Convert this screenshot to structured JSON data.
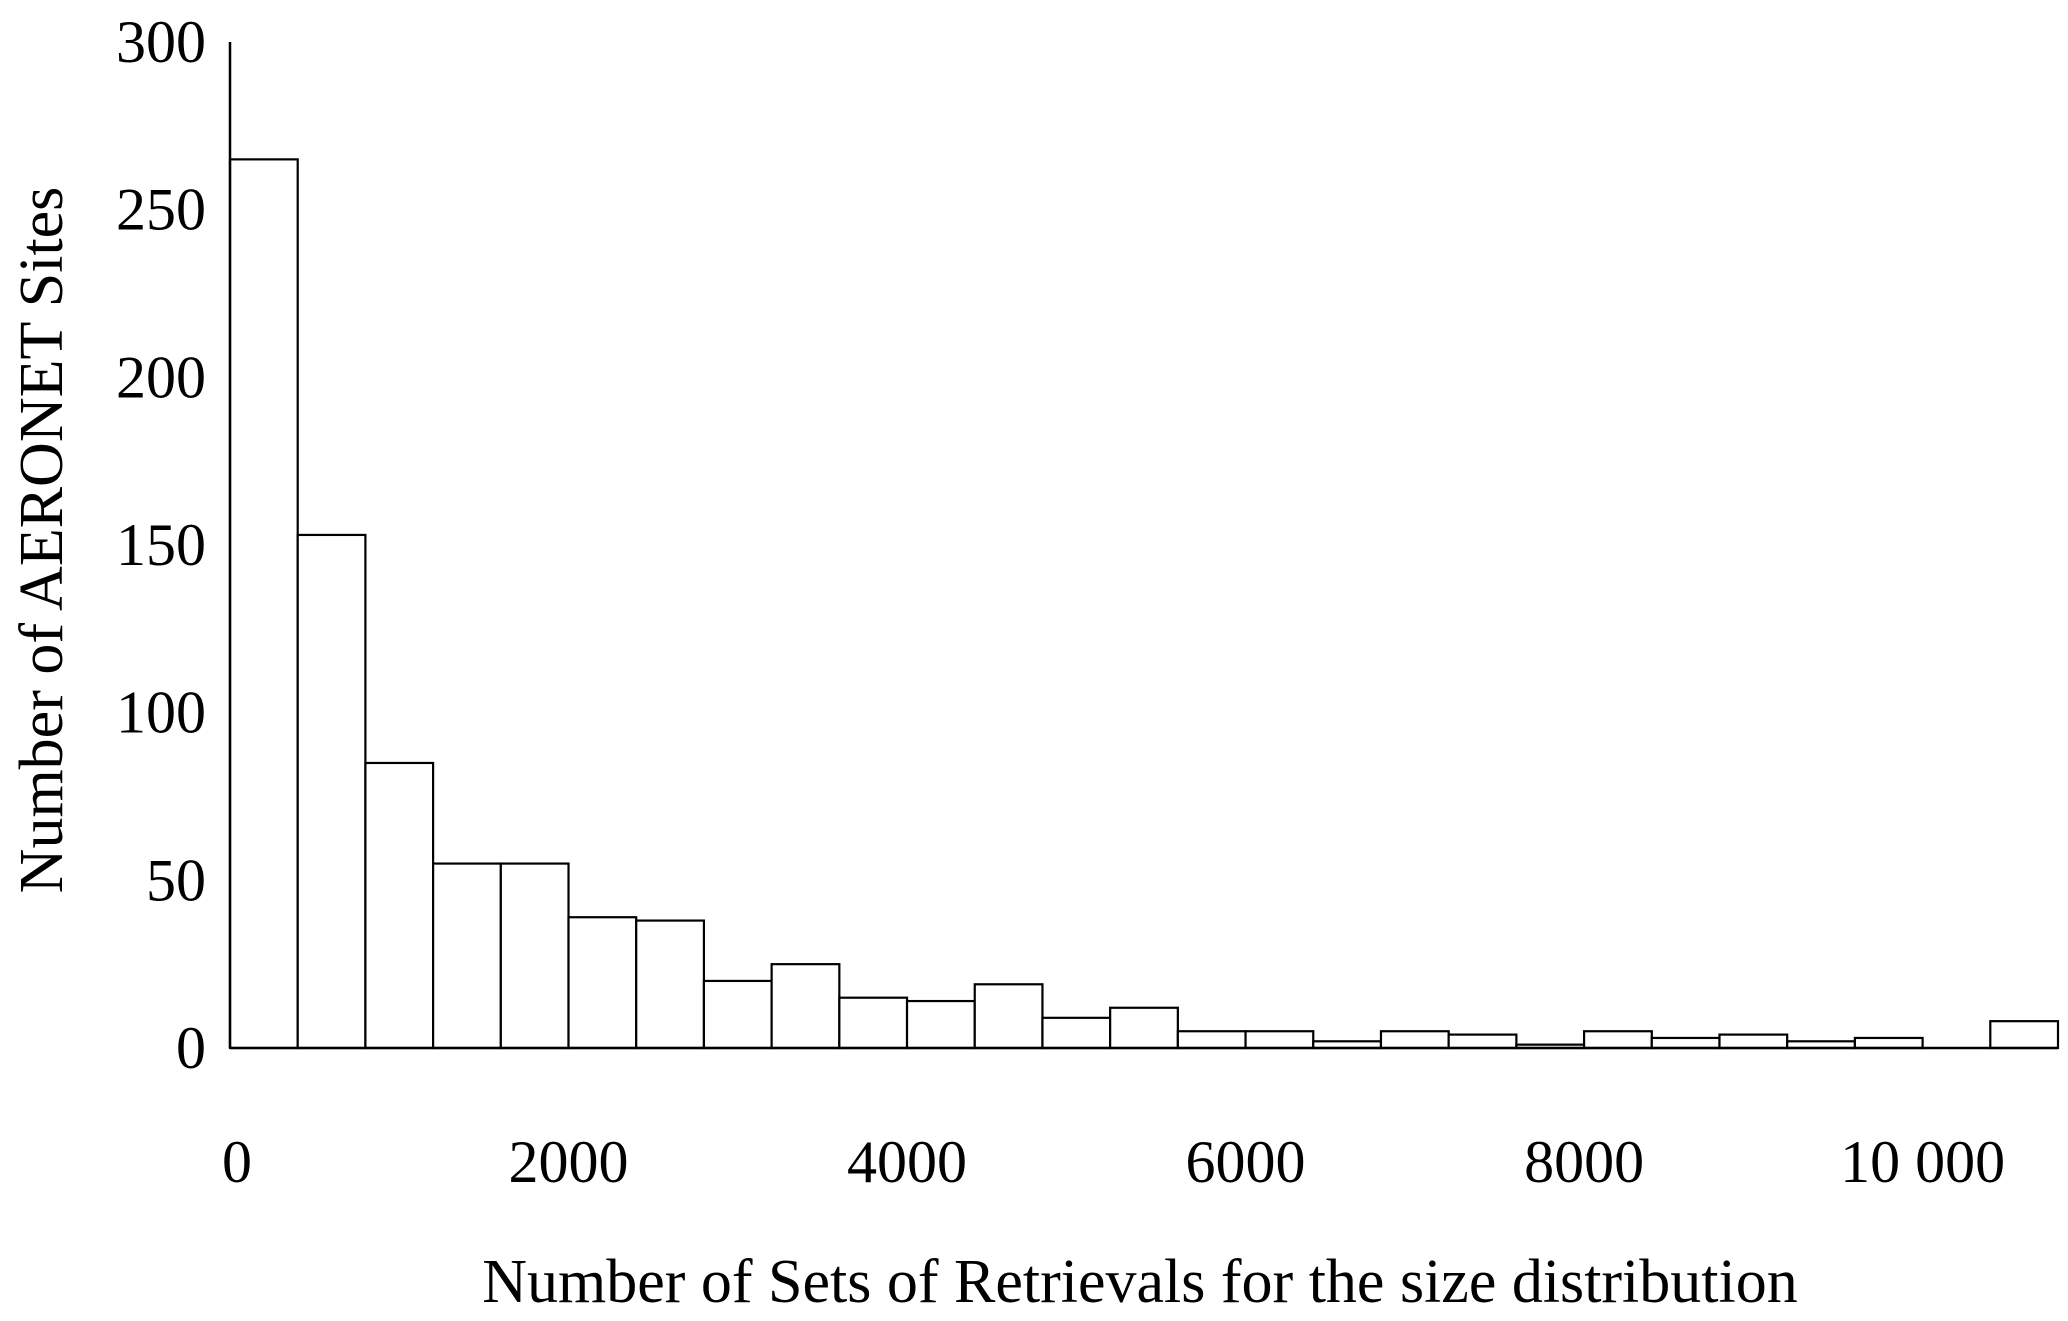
{
  "chart_data": {
    "type": "bar",
    "title": "",
    "xlabel": "Number of Sets of Retrievals for the size distribution",
    "ylabel": "Number of AERONET Sites",
    "xlim": [
      0,
      10800
    ],
    "ylim": [
      0,
      300
    ],
    "x_ticks": [
      {
        "value": 0,
        "label": "0"
      },
      {
        "value": 2000,
        "label": "2000"
      },
      {
        "value": 4000,
        "label": "4000"
      },
      {
        "value": 6000,
        "label": "6000"
      },
      {
        "value": 8000,
        "label": "8000"
      },
      {
        "value": 10000,
        "label": "10 000"
      }
    ],
    "y_ticks": [
      {
        "value": 0,
        "label": "0"
      },
      {
        "value": 50,
        "label": "50"
      },
      {
        "value": 100,
        "label": "100"
      },
      {
        "value": 150,
        "label": "150"
      },
      {
        "value": 200,
        "label": "200"
      },
      {
        "value": 250,
        "label": "250"
      },
      {
        "value": 300,
        "label": "300"
      }
    ],
    "bin_width": 400,
    "bins": [
      {
        "x0": 0,
        "x1": 400,
        "count": 265
      },
      {
        "x0": 400,
        "x1": 800,
        "count": 153
      },
      {
        "x0": 800,
        "x1": 1200,
        "count": 85
      },
      {
        "x0": 1200,
        "x1": 1600,
        "count": 55
      },
      {
        "x0": 1600,
        "x1": 2000,
        "count": 55
      },
      {
        "x0": 2000,
        "x1": 2400,
        "count": 39
      },
      {
        "x0": 2400,
        "x1": 2800,
        "count": 38
      },
      {
        "x0": 2800,
        "x1": 3200,
        "count": 20
      },
      {
        "x0": 3200,
        "x1": 3600,
        "count": 25
      },
      {
        "x0": 3600,
        "x1": 4000,
        "count": 15
      },
      {
        "x0": 4000,
        "x1": 4400,
        "count": 14
      },
      {
        "x0": 4400,
        "x1": 4800,
        "count": 19
      },
      {
        "x0": 4800,
        "x1": 5200,
        "count": 9
      },
      {
        "x0": 5200,
        "x1": 5600,
        "count": 12
      },
      {
        "x0": 5600,
        "x1": 6000,
        "count": 5
      },
      {
        "x0": 6000,
        "x1": 6400,
        "count": 5
      },
      {
        "x0": 6400,
        "x1": 6800,
        "count": 2
      },
      {
        "x0": 6800,
        "x1": 7200,
        "count": 5
      },
      {
        "x0": 7200,
        "x1": 7600,
        "count": 4
      },
      {
        "x0": 7600,
        "x1": 8000,
        "count": 1
      },
      {
        "x0": 8000,
        "x1": 8400,
        "count": 5
      },
      {
        "x0": 8400,
        "x1": 8800,
        "count": 3
      },
      {
        "x0": 8800,
        "x1": 9200,
        "count": 4
      },
      {
        "x0": 9200,
        "x1": 9600,
        "count": 2
      },
      {
        "x0": 9600,
        "x1": 10000,
        "count": 3
      },
      {
        "x0": 10000,
        "x1": 10400,
        "count": 0
      },
      {
        "x0": 10400,
        "x1": 10800,
        "count": 8
      }
    ],
    "grid": false,
    "legend": "none"
  }
}
